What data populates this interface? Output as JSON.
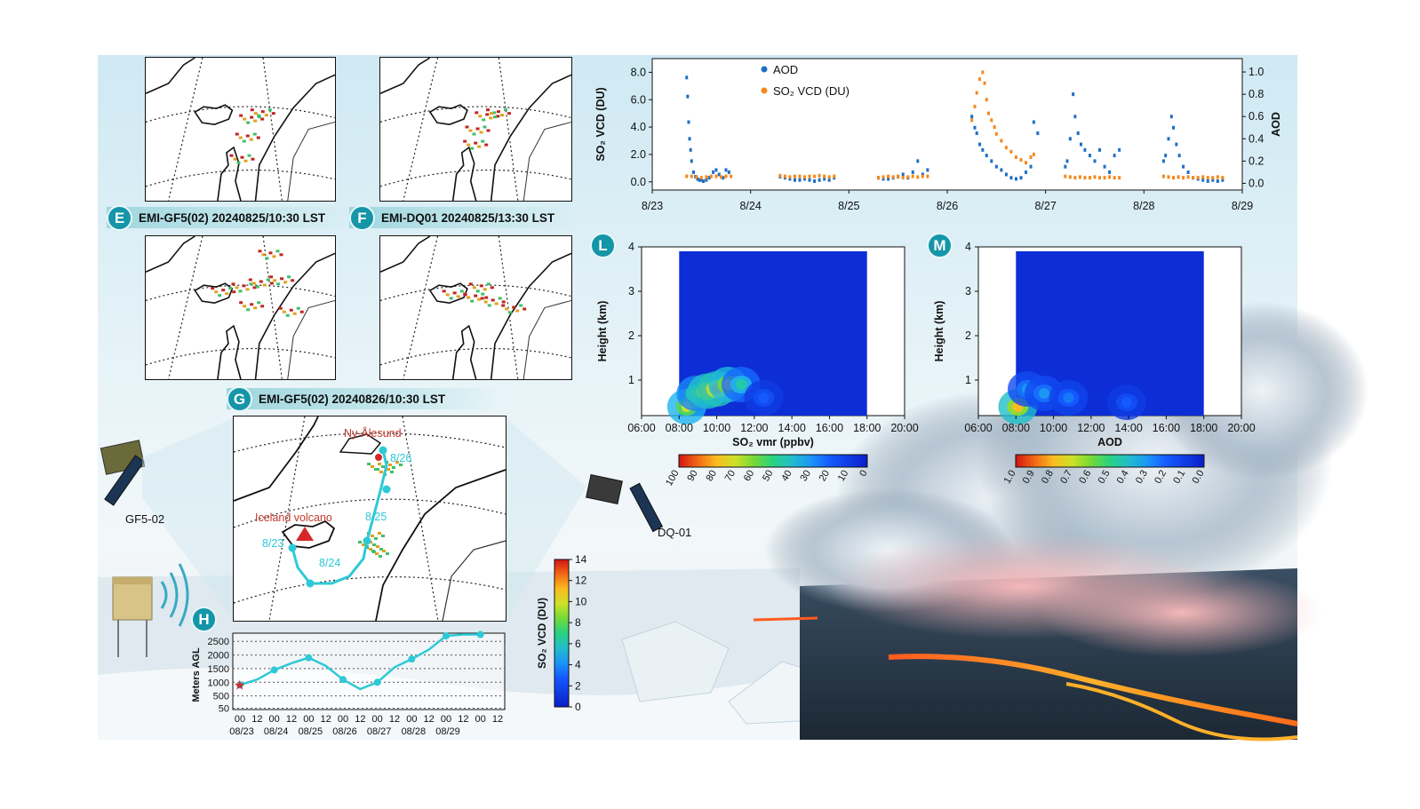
{
  "colors": {
    "aod": "#1f6fc4",
    "so2": "#f28a1e",
    "teal": "#1596a8",
    "route": "#2ec9d6",
    "volcano_marker": "#d62828",
    "place_label": "#c0392b"
  },
  "panels": {
    "E": {
      "badge": "E",
      "title": "EMI-GF5(02) 20240825/10:30 LST"
    },
    "F": {
      "badge": "F",
      "title": "EMI-DQ01 20240825/13:30 LST"
    },
    "G": {
      "badge": "G",
      "title": "EMI-GF5(02) 20240826/10:30 LST"
    },
    "H": {
      "badge": "H"
    },
    "L": {
      "badge": "L"
    },
    "M": {
      "badge": "M"
    }
  },
  "map_labels": {
    "ny_alesund": "Ny-Ålesund",
    "iceland_volcano": "Iceland volcano",
    "route_dates": [
      "8/23",
      "8/24",
      "8/25",
      "8/26"
    ]
  },
  "scene_labels": {
    "gf5": "GF5-02",
    "dq": "DQ-01"
  },
  "colorbar_vcd": {
    "label": "SO₂ VCD (DU)",
    "ticks": [
      "0",
      "2",
      "4",
      "6",
      "8",
      "10",
      "12",
      "14"
    ]
  },
  "chart_data": [
    {
      "id": "timeseries",
      "type": "scatter",
      "xlabel": "",
      "x_ticks": [
        "8/23",
        "8/24",
        "8/25",
        "8/26",
        "8/27",
        "8/28",
        "8/29"
      ],
      "ylabel_left": "SO₂ VCD (DU)",
      "ylabel_right": "AOD",
      "ylim_left": [
        -0.6,
        9.0
      ],
      "ylim_right": [
        -0.06,
        1.12
      ],
      "yticks_left": [
        "0.0",
        "2.0",
        "4.0",
        "6.0",
        "8.0"
      ],
      "yticks_right": [
        "0.0",
        "0.2",
        "0.4",
        "0.6",
        "0.8",
        "1.0"
      ],
      "legend": [
        "AOD",
        "SO₂ VCD (DU)"
      ],
      "legend_position": "top-left",
      "series": [
        {
          "name": "AOD",
          "axis": "right",
          "x": [
            0.35,
            0.36,
            0.37,
            0.38,
            0.39,
            0.4,
            0.42,
            0.44,
            0.46,
            0.48,
            0.5,
            0.52,
            0.55,
            0.58,
            0.62,
            0.65,
            0.68,
            0.72,
            0.75,
            0.78,
            1.3,
            1.35,
            1.4,
            1.45,
            1.5,
            1.55,
            1.6,
            1.65,
            1.7,
            1.75,
            1.8,
            1.85,
            2.3,
            2.35,
            2.4,
            2.45,
            2.5,
            2.55,
            2.6,
            2.65,
            2.7,
            2.75,
            2.8,
            3.25,
            3.28,
            3.3,
            3.33,
            3.36,
            3.4,
            3.45,
            3.5,
            3.55,
            3.6,
            3.65,
            3.7,
            3.75,
            3.8,
            3.85,
            3.88,
            3.92,
            4.2,
            4.22,
            4.25,
            4.28,
            4.3,
            4.33,
            4.36,
            4.4,
            4.45,
            4.5,
            4.55,
            4.6,
            4.65,
            4.7,
            4.75,
            5.2,
            5.22,
            5.25,
            5.28,
            5.3,
            5.33,
            5.36,
            5.4,
            5.45,
            5.5,
            5.55,
            5.6,
            5.65,
            5.7,
            5.75,
            5.8
          ],
          "y": [
            0.95,
            0.78,
            0.55,
            0.4,
            0.3,
            0.2,
            0.1,
            0.06,
            0.04,
            0.03,
            0.03,
            0.02,
            0.03,
            0.05,
            0.1,
            0.12,
            0.08,
            0.05,
            0.12,
            0.1,
            0.06,
            0.05,
            0.04,
            0.03,
            0.03,
            0.04,
            0.03,
            0.02,
            0.03,
            0.04,
            0.03,
            0.05,
            0.05,
            0.04,
            0.04,
            0.05,
            0.06,
            0.08,
            0.05,
            0.1,
            0.2,
            0.08,
            0.12,
            0.6,
            0.5,
            0.45,
            0.35,
            0.3,
            0.25,
            0.2,
            0.15,
            0.12,
            0.08,
            0.05,
            0.04,
            0.05,
            0.1,
            0.15,
            0.55,
            0.45,
            0.15,
            0.2,
            0.4,
            0.8,
            0.6,
            0.45,
            0.35,
            0.3,
            0.25,
            0.2,
            0.3,
            0.15,
            0.1,
            0.25,
            0.3,
            0.2,
            0.25,
            0.4,
            0.6,
            0.5,
            0.35,
            0.25,
            0.15,
            0.1,
            0.05,
            0.04,
            0.03,
            0.02,
            0.03,
            0.02,
            0.03
          ]
        },
        {
          "name": "SO₂ VCD (DU)",
          "axis": "left",
          "x": [
            0.35,
            0.4,
            0.45,
            0.5,
            0.55,
            0.6,
            0.65,
            0.7,
            0.75,
            0.8,
            1.3,
            1.35,
            1.4,
            1.45,
            1.5,
            1.55,
            1.6,
            1.65,
            1.7,
            1.75,
            1.8,
            1.85,
            2.3,
            2.35,
            2.4,
            2.45,
            2.5,
            2.55,
            2.6,
            2.65,
            2.7,
            2.75,
            2.8,
            3.25,
            3.28,
            3.3,
            3.33,
            3.36,
            3.38,
            3.4,
            3.42,
            3.45,
            3.48,
            3.5,
            3.55,
            3.6,
            3.65,
            3.7,
            3.75,
            3.8,
            3.85,
            3.88,
            4.2,
            4.25,
            4.3,
            4.35,
            4.4,
            4.45,
            4.5,
            4.55,
            4.6,
            4.65,
            4.7,
            4.75,
            5.2,
            5.25,
            5.3,
            5.35,
            5.4,
            5.45,
            5.5,
            5.55,
            5.6,
            5.65,
            5.7,
            5.75,
            5.8
          ],
          "y": [
            0.4,
            0.4,
            0.35,
            0.3,
            0.35,
            0.4,
            0.4,
            0.35,
            0.4,
            0.4,
            0.45,
            0.4,
            0.35,
            0.4,
            0.4,
            0.35,
            0.4,
            0.4,
            0.45,
            0.4,
            0.35,
            0.4,
            0.3,
            0.35,
            0.4,
            0.35,
            0.4,
            0.3,
            0.35,
            0.4,
            0.35,
            0.4,
            0.4,
            4.5,
            5.5,
            6.5,
            7.5,
            8.0,
            7.2,
            6.0,
            5.0,
            4.5,
            4.0,
            3.5,
            3.0,
            2.5,
            2.2,
            1.8,
            1.6,
            1.4,
            1.8,
            2.0,
            0.4,
            0.35,
            0.3,
            0.35,
            0.3,
            0.3,
            0.35,
            0.3,
            0.3,
            0.35,
            0.3,
            0.3,
            0.4,
            0.35,
            0.3,
            0.35,
            0.3,
            0.35,
            0.3,
            0.3,
            0.35,
            0.3,
            0.3,
            0.35,
            0.3
          ]
        }
      ]
    },
    {
      "id": "L",
      "type": "heatmap",
      "xlabel": "SO₂ vmr (ppbv)",
      "ylabel": "Height (km)",
      "x_ticks": [
        "06:00",
        "08:00",
        "10:00",
        "12:00",
        "14:00",
        "16:00",
        "18:00",
        "20:00"
      ],
      "y_ticks": [
        "1",
        "2",
        "3",
        "4"
      ],
      "xlim": [
        6,
        20
      ],
      "ylim": [
        0.2,
        4
      ],
      "data_x_range": [
        8,
        18
      ],
      "data_y_range": [
        0.2,
        3.9
      ],
      "colorbar_ticks": [
        "100",
        "90",
        "80",
        "70",
        "60",
        "50",
        "40",
        "30",
        "20",
        "10",
        "0"
      ],
      "colorbar_range": [
        100,
        0
      ],
      "hotspots": [
        {
          "t": 8.4,
          "h": 0.4,
          "value": 70
        },
        {
          "t": 8.9,
          "h": 0.7,
          "value": 55
        },
        {
          "t": 9.5,
          "h": 0.75,
          "value": 80
        },
        {
          "t": 10.0,
          "h": 0.8,
          "value": 85
        },
        {
          "t": 10.6,
          "h": 0.9,
          "value": 75
        },
        {
          "t": 11.3,
          "h": 0.9,
          "value": 45
        },
        {
          "t": 12.5,
          "h": 0.6,
          "value": 20
        }
      ]
    },
    {
      "id": "M",
      "type": "heatmap",
      "xlabel": "AOD",
      "ylabel": "Height (km)",
      "x_ticks": [
        "06:00",
        "08:00",
        "10:00",
        "12:00",
        "14:00",
        "16:00",
        "18:00",
        "20:00"
      ],
      "y_ticks": [
        "1",
        "2",
        "3",
        "4"
      ],
      "xlim": [
        6,
        20
      ],
      "ylim": [
        0.2,
        4
      ],
      "data_x_range": [
        8,
        18
      ],
      "data_y_range": [
        0.2,
        3.9
      ],
      "colorbar_ticks": [
        "1.0",
        "0.9",
        "0.8",
        "0.7",
        "0.6",
        "0.5",
        "0.4",
        "0.3",
        "0.2",
        "0.1",
        "0.0"
      ],
      "colorbar_range": [
        1.0,
        0.0
      ],
      "hotspots": [
        {
          "t": 8.1,
          "h": 0.4,
          "value": 0.8
        },
        {
          "t": 8.6,
          "h": 0.8,
          "value": 0.3
        },
        {
          "t": 9.5,
          "h": 0.7,
          "value": 0.3
        },
        {
          "t": 10.8,
          "h": 0.6,
          "value": 0.25
        },
        {
          "t": 13.9,
          "h": 0.5,
          "value": 0.2
        }
      ]
    },
    {
      "id": "H",
      "type": "line",
      "ylabel": "Meters AGL",
      "yticks": [
        "50",
        "500",
        "1000",
        "1500",
        "2000",
        "2500"
      ],
      "ylim": [
        0,
        2800
      ],
      "x_hour_ticks": [
        "00",
        "12",
        "00",
        "12",
        "00",
        "12",
        "00",
        "12",
        "00",
        "12",
        "00",
        "12",
        "00",
        "12",
        "00",
        "12"
      ],
      "x_date_ticks": [
        "08/23",
        "08/24",
        "08/25",
        "08/26",
        "08/27",
        "08/28",
        "08/29"
      ],
      "series": [
        {
          "name": "",
          "x_hours": [
            0,
            12,
            24,
            36,
            48,
            60,
            72,
            84,
            96,
            108,
            120,
            132,
            144,
            156,
            168
          ],
          "y": [
            900,
            1100,
            1450,
            1700,
            1900,
            1600,
            1100,
            750,
            1000,
            1550,
            1850,
            2200,
            2700,
            2750,
            2750
          ]
        }
      ]
    }
  ]
}
